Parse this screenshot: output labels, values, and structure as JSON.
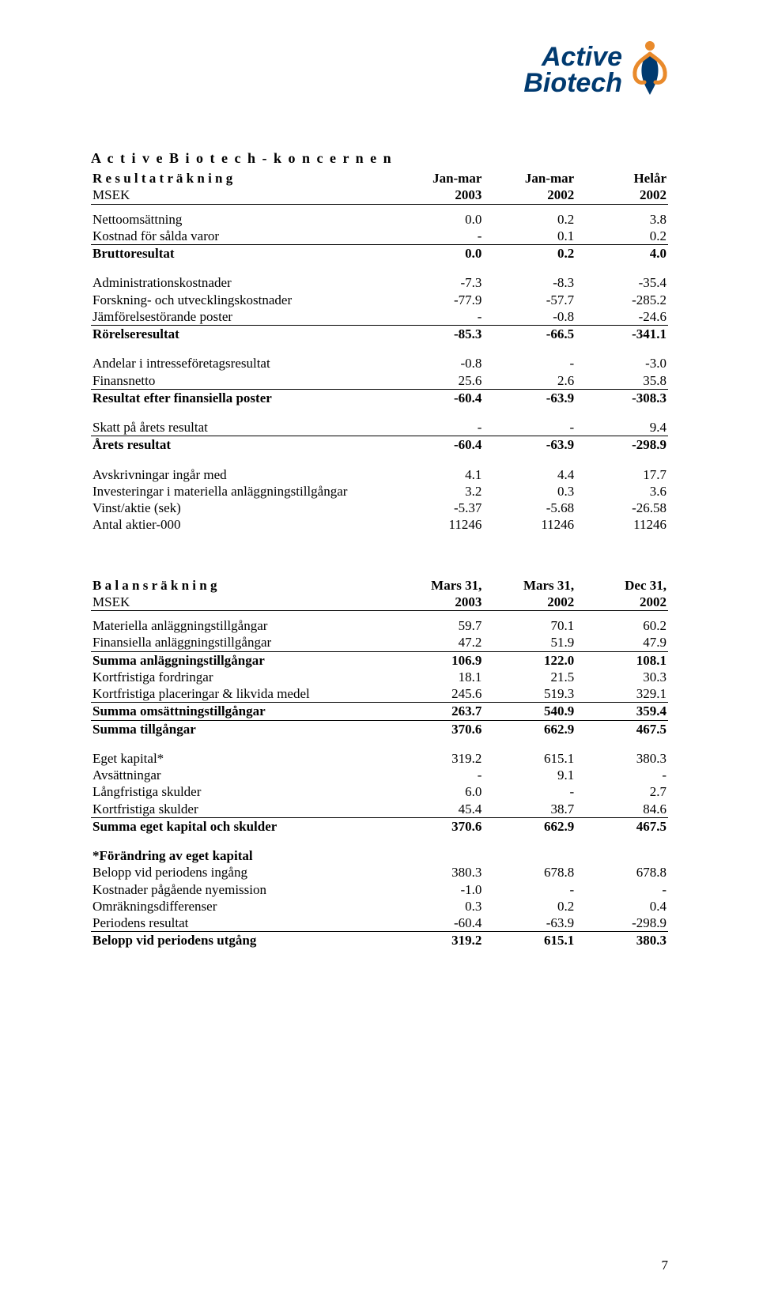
{
  "logo": {
    "line1": "Active",
    "line2": "Biotech",
    "text_color": "#003a70",
    "figure_orange": "#e98a2b",
    "figure_navy": "#003a70"
  },
  "company_heading": "A c t i v e  B i o t e c h - k o n c e r n e n",
  "section1": {
    "title": "R e s u l t a t r ä k n i n g",
    "subtitle": "MSEK",
    "col_headers_top": [
      "Jan-mar",
      "Jan-mar",
      "Helår"
    ],
    "col_headers_bottom_years": [
      "2003",
      "2002",
      "2002"
    ],
    "rows": [
      {
        "label": "Nettoomsättning",
        "c1": "0.0",
        "c2": "0.2",
        "c3": "3.8"
      },
      {
        "label": "Kostnad för sålda varor",
        "c1": "-",
        "c2": "0.1",
        "c3": "0.2",
        "underline": true
      },
      {
        "label": "Bruttoresultat",
        "c1": "0.0",
        "c2": "0.2",
        "c3": "4.0",
        "bold": true
      },
      {
        "spacer": true
      },
      {
        "label": "Administrationskostnader",
        "c1": "-7.3",
        "c2": "-8.3",
        "c3": "-35.4"
      },
      {
        "label": "Forskning- och utvecklingskostnader",
        "c1": "-77.9",
        "c2": "-57.7",
        "c3": "-285.2"
      },
      {
        "label": "Jämförelsestörande poster",
        "c1": "-",
        "c2": "-0.8",
        "c3": "-24.6",
        "underline": true
      },
      {
        "label": "Rörelseresultat",
        "c1": "-85.3",
        "c2": "-66.5",
        "c3": "-341.1",
        "bold": true
      },
      {
        "spacer": true
      },
      {
        "label": "Andelar i intresseföretagsresultat",
        "c1": "-0.8",
        "c2": "-",
        "c3": "-3.0"
      },
      {
        "label": "Finansnetto",
        "c1": "25.6",
        "c2": "2.6",
        "c3": "35.8",
        "underline": true
      },
      {
        "label": "Resultat efter finansiella poster",
        "c1": "-60.4",
        "c2": "-63.9",
        "c3": "-308.3",
        "bold": true
      },
      {
        "spacer": true
      },
      {
        "label": "Skatt på årets resultat",
        "c1": "-",
        "c2": "-",
        "c3": "9.4",
        "underline": true
      },
      {
        "label": "Årets resultat",
        "c1": "-60.4",
        "c2": "-63.9",
        "c3": "-298.9",
        "bold": true
      },
      {
        "spacer": true
      },
      {
        "label": "Avskrivningar ingår med",
        "c1": "4.1",
        "c2": "4.4",
        "c3": "17.7"
      },
      {
        "label": "Investeringar i materiella anläggningstillgångar",
        "c1": "3.2",
        "c2": "0.3",
        "c3": "3.6"
      },
      {
        "label": "Vinst/aktie (sek)",
        "c1": "-5.37",
        "c2": "-5.68",
        "c3": "-26.58"
      },
      {
        "label": "Antal aktier-000",
        "c1": "11246",
        "c2": "11246",
        "c3": "11246"
      }
    ]
  },
  "section2": {
    "title": "B a l a n s r ä k n i n g",
    "subtitle": "MSEK",
    "col_headers_top": [
      "Mars 31,",
      "Mars 31,",
      "Dec 31,"
    ],
    "col_headers_bottom_years": [
      "2003",
      "2002",
      "2002"
    ],
    "rows": [
      {
        "label": "Materiella anläggningstillgångar",
        "c1": "59.7",
        "c2": "70.1",
        "c3": "60.2"
      },
      {
        "label": "Finansiella anläggningstillgångar",
        "c1": "47.2",
        "c2": "51.9",
        "c3": "47.9",
        "underline": true
      },
      {
        "label": "Summa anläggningstillgångar",
        "c1": "106.9",
        "c2": "122.0",
        "c3": "108.1",
        "bold": true
      },
      {
        "label": "Kortfristiga fordringar",
        "c1": "18.1",
        "c2": "21.5",
        "c3": "30.3"
      },
      {
        "label": "Kortfristiga placeringar & likvida medel",
        "c1": "245.6",
        "c2": "519.3",
        "c3": "329.1",
        "underline": true
      },
      {
        "label": "Summa omsättningstillgångar",
        "c1": "263.7",
        "c2": "540.9",
        "c3": "359.4",
        "bold": true,
        "underline": true
      },
      {
        "label": "Summa tillgångar",
        "c1": "370.6",
        "c2": "662.9",
        "c3": "467.5",
        "bold": true
      },
      {
        "spacer": true
      },
      {
        "label": "Eget kapital*",
        "c1": "319.2",
        "c2": "615.1",
        "c3": "380.3"
      },
      {
        "label": "Avsättningar",
        "c1": "-",
        "c2": "9.1",
        "c3": "-"
      },
      {
        "label": "Långfristiga skulder",
        "c1": "6.0",
        "c2": "-",
        "c3": "2.7"
      },
      {
        "label": "Kortfristiga skulder",
        "c1": "45.4",
        "c2": "38.7",
        "c3": "84.6",
        "underline": true
      },
      {
        "label": "Summa eget kapital och skulder",
        "c1": "370.6",
        "c2": "662.9",
        "c3": "467.5",
        "bold": true
      },
      {
        "spacer": true
      },
      {
        "label": "*Förändring av eget kapital",
        "c1": "",
        "c2": "",
        "c3": "",
        "bold": true
      },
      {
        "label": "Belopp vid periodens ingång",
        "c1": "380.3",
        "c2": "678.8",
        "c3": "678.8"
      },
      {
        "label": "Kostnader pågående nyemission",
        "c1": "-1.0",
        "c2": "-",
        "c3": "-"
      },
      {
        "label": "Omräkningsdifferenser",
        "c1": "0.3",
        "c2": "0.2",
        "c3": "0.4"
      },
      {
        "label": "Periodens resultat",
        "c1": "-60.4",
        "c2": "-63.9",
        "c3": "-298.9",
        "underline": true
      },
      {
        "label": "Belopp vid periodens utgång",
        "c1": "319.2",
        "c2": "615.1",
        "c3": "380.3",
        "bold": true
      }
    ]
  },
  "page_number": "7"
}
